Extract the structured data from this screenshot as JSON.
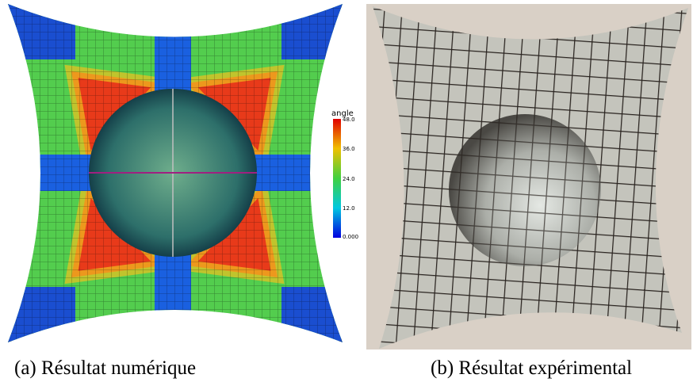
{
  "figure_a": {
    "colorbar": {
      "title": "angle",
      "ticks": [
        "48.0",
        "36.0",
        "24.0",
        "12.0",
        "0.000"
      ]
    },
    "caption": "(a) Résultat numérique"
  },
  "figure_b": {
    "caption": "(b) Résultat expérimental"
  }
}
